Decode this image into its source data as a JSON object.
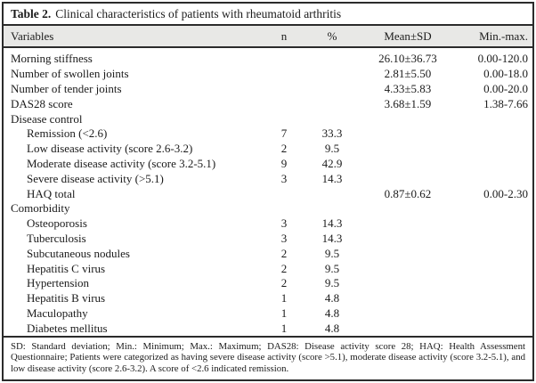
{
  "title": {
    "label": "Table 2.",
    "text": "Clinical characteristics of patients with rheumatoid arthritis"
  },
  "columns": [
    "Variables",
    "n",
    "%",
    "Mean±SD",
    "Min.-max."
  ],
  "rows": [
    {
      "label": "Morning stiffness",
      "mean_sd": "26.10±36.73",
      "min_max": "0.00-120.0"
    },
    {
      "label": "Number of swollen joints",
      "mean_sd": "2.81±5.50",
      "min_max": "0.00-18.0"
    },
    {
      "label": "Number of tender joints",
      "mean_sd": "4.33±5.83",
      "min_max": "0.00-20.0"
    },
    {
      "label": "DAS28 score",
      "mean_sd": "3.68±1.59",
      "min_max": "1.38-7.66"
    },
    {
      "label": "Disease control"
    },
    {
      "label": "Remission (<2.6)",
      "n": "7",
      "pct": "33.3"
    },
    {
      "label": "Low disease activity (score 2.6-3.2)",
      "n": "2",
      "pct": "9.5"
    },
    {
      "label": "Moderate disease activity (score 3.2-5.1)",
      "n": "9",
      "pct": "42.9"
    },
    {
      "label": "Severe disease activity (>5.1)",
      "n": "3",
      "pct": "14.3"
    },
    {
      "label": "HAQ total",
      "mean_sd": "0.87±0.62",
      "min_max": "0.00-2.30"
    },
    {
      "label": "Comorbidity"
    },
    {
      "label": "Osteoporosis",
      "n": "3",
      "pct": "14.3"
    },
    {
      "label": "Tuberculosis",
      "n": "3",
      "pct": "14.3"
    },
    {
      "label": "Subcutaneous nodules",
      "n": "2",
      "pct": "9.5"
    },
    {
      "label": "Hepatitis C virus",
      "n": "2",
      "pct": "9.5"
    },
    {
      "label": "Hypertension",
      "n": "2",
      "pct": "9.5"
    },
    {
      "label": "Hepatitis B virus",
      "n": "1",
      "pct": "4.8"
    },
    {
      "label": "Maculopathy",
      "n": "1",
      "pct": "4.8"
    },
    {
      "label": "Diabetes mellitus",
      "n": "1",
      "pct": "4.8"
    }
  ],
  "footnote": "SD: Standard deviation; Min.: Minimum; Max.: Maximum; DAS28: Disease activity score 28; HAQ: Health Assessment Questionnaire; Patients were categorized as having severe disease activity (score >5.1), moderate disease activity (score 3.2-5.1), and low disease activity (score 2.6-3.2). A score of <2.6 indicated remission.",
  "colors": {
    "header_band_bg": "#e8e8e6",
    "rule": "#2b2b2b",
    "text": "#1b1b1b",
    "background": "#ffffff"
  }
}
